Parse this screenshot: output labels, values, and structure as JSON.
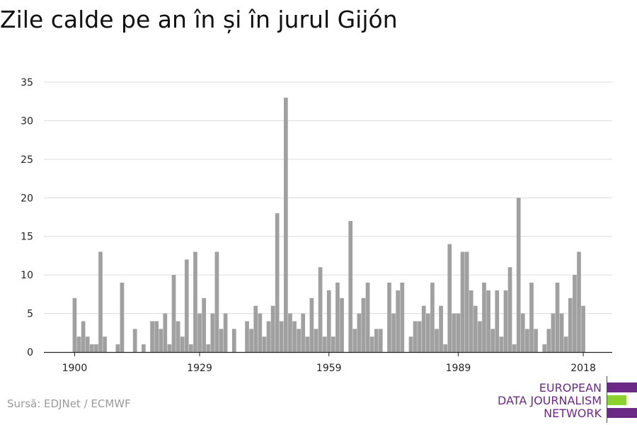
{
  "title": "Zile calde pe an în și în jurul Gijón",
  "source": "Sursă: EDJNet / ECMWF",
  "logo": {
    "lines": [
      "EUROPEAN",
      "DATA JOURNALISM",
      "NETWORK"
    ],
    "colors": {
      "purple": "#6a2a86",
      "green": "#8bd22f"
    }
  },
  "colors": {
    "bar": "#a0a0a0",
    "grid": "#dcdcdc",
    "axis": "#222222"
  },
  "chart_data": {
    "type": "bar",
    "title": "",
    "xlabel": "",
    "ylabel": "",
    "ylim": [
      0,
      35
    ],
    "yticks": [
      0,
      5,
      10,
      15,
      20,
      25,
      30,
      35
    ],
    "xticks": [
      1900,
      1929,
      1959,
      1989,
      2018
    ],
    "xlim": [
      1899,
      2018
    ],
    "grid": true,
    "legend": "none",
    "x": [
      1899,
      1900,
      1901,
      1902,
      1903,
      1904,
      1905,
      1906,
      1907,
      1908,
      1909,
      1910,
      1911,
      1912,
      1913,
      1914,
      1915,
      1916,
      1917,
      1918,
      1919,
      1920,
      1921,
      1922,
      1923,
      1924,
      1925,
      1926,
      1927,
      1928,
      1929,
      1930,
      1931,
      1932,
      1933,
      1934,
      1935,
      1936,
      1937,
      1938,
      1939,
      1940,
      1941,
      1942,
      1943,
      1944,
      1945,
      1946,
      1947,
      1948,
      1949,
      1950,
      1951,
      1952,
      1953,
      1954,
      1955,
      1956,
      1957,
      1958,
      1959,
      1960,
      1961,
      1962,
      1963,
      1964,
      1965,
      1966,
      1967,
      1968,
      1969,
      1970,
      1971,
      1972,
      1973,
      1974,
      1975,
      1976,
      1977,
      1978,
      1979,
      1980,
      1981,
      1982,
      1983,
      1984,
      1985,
      1986,
      1987,
      1988,
      1989,
      1990,
      1991,
      1992,
      1993,
      1994,
      1995,
      1996,
      1997,
      1998,
      1999,
      2000,
      2001,
      2002,
      2003,
      2004,
      2005,
      2006,
      2007,
      2008,
      2009,
      2010,
      2011,
      2012,
      2013,
      2014,
      2015,
      2016,
      2017,
      2018
    ],
    "values": [
      0,
      7,
      2,
      4,
      2,
      1,
      1,
      13,
      2,
      0,
      0,
      1,
      9,
      0,
      0,
      3,
      0,
      1,
      0,
      4,
      4,
      3,
      5,
      1,
      10,
      4,
      2,
      12,
      1,
      13,
      5,
      7,
      1,
      5,
      13,
      3,
      5,
      0,
      3,
      0,
      0,
      4,
      3,
      6,
      5,
      2,
      4,
      6,
      18,
      4,
      33,
      5,
      4,
      3,
      5,
      2,
      7,
      3,
      11,
      2,
      8,
      2,
      9,
      7,
      0,
      17,
      3,
      5,
      7,
      9,
      2,
      3,
      3,
      0,
      9,
      5,
      8,
      9,
      0,
      2,
      4,
      4,
      6,
      5,
      9,
      3,
      6,
      1,
      14,
      5,
      5,
      13,
      13,
      8,
      6,
      4,
      9,
      8,
      3,
      8,
      2,
      8,
      11,
      1,
      20,
      5,
      3,
      9,
      3,
      0,
      1,
      3,
      5,
      9,
      5,
      2,
      7,
      10,
      13,
      6
    ]
  }
}
